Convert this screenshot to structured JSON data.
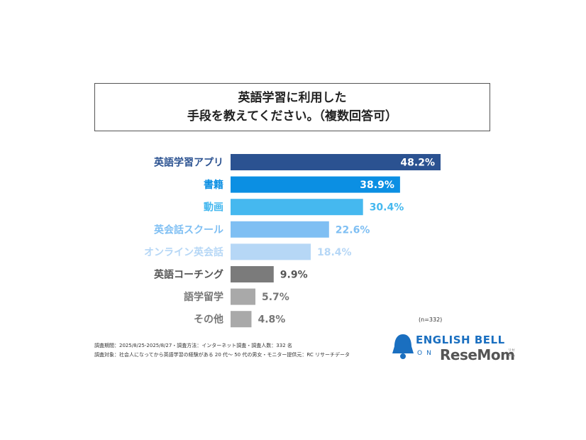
{
  "title_lines": [
    "英語学習に利用した",
    "手段を教えてください。（複数回答可）"
  ],
  "sample_note": "(n=332)",
  "footnotes": [
    "調査期間：2025/8/25-2025/8/27・調査方法：インターネット調査・調査人数：332 名",
    "調査対象：社会人になってから英語学習の経験がある 20 代～ 50 代の男女・モニター提供元：RC リサーチデータ"
  ],
  "logo": {
    "brand": "ENGLISH BELL",
    "sub": "ON",
    "site": "ReseMom",
    "kana": "リセマム",
    "bell_color": "#1a6fc0"
  },
  "chart_data": {
    "type": "bar",
    "orientation": "horizontal",
    "title": "英語学習に利用した手段を教えてください。（複数回答可）",
    "categories": [
      "英語学習アプリ",
      "書籍",
      "動画",
      "英会話スクール",
      "オンライン英会話",
      "英語コーチング",
      "語学留学",
      "その他"
    ],
    "values": [
      48.2,
      38.9,
      30.4,
      22.6,
      18.4,
      9.9,
      5.7,
      4.8
    ],
    "value_labels": [
      "48.2%",
      "38.9%",
      "30.4%",
      "22.6%",
      "18.4%",
      "9.9%",
      "5.7%",
      "4.8%"
    ],
    "label_inside": [
      true,
      true,
      false,
      false,
      false,
      false,
      false,
      false
    ],
    "colors": [
      "#2b5291",
      "#0b8fe3",
      "#45b8ef",
      "#7fbff3",
      "#b6d7f6",
      "#7b7b7b",
      "#a9a9a9",
      "#a9a9a9"
    ],
    "label_colors": [
      "#2b5291",
      "#0b8fe3",
      "#45b8ef",
      "#7fbff3",
      "#b6d7f6",
      "#555555",
      "#777777",
      "#777777"
    ],
    "xlim": [
      0,
      50
    ],
    "grid": false,
    "legend": "none"
  }
}
